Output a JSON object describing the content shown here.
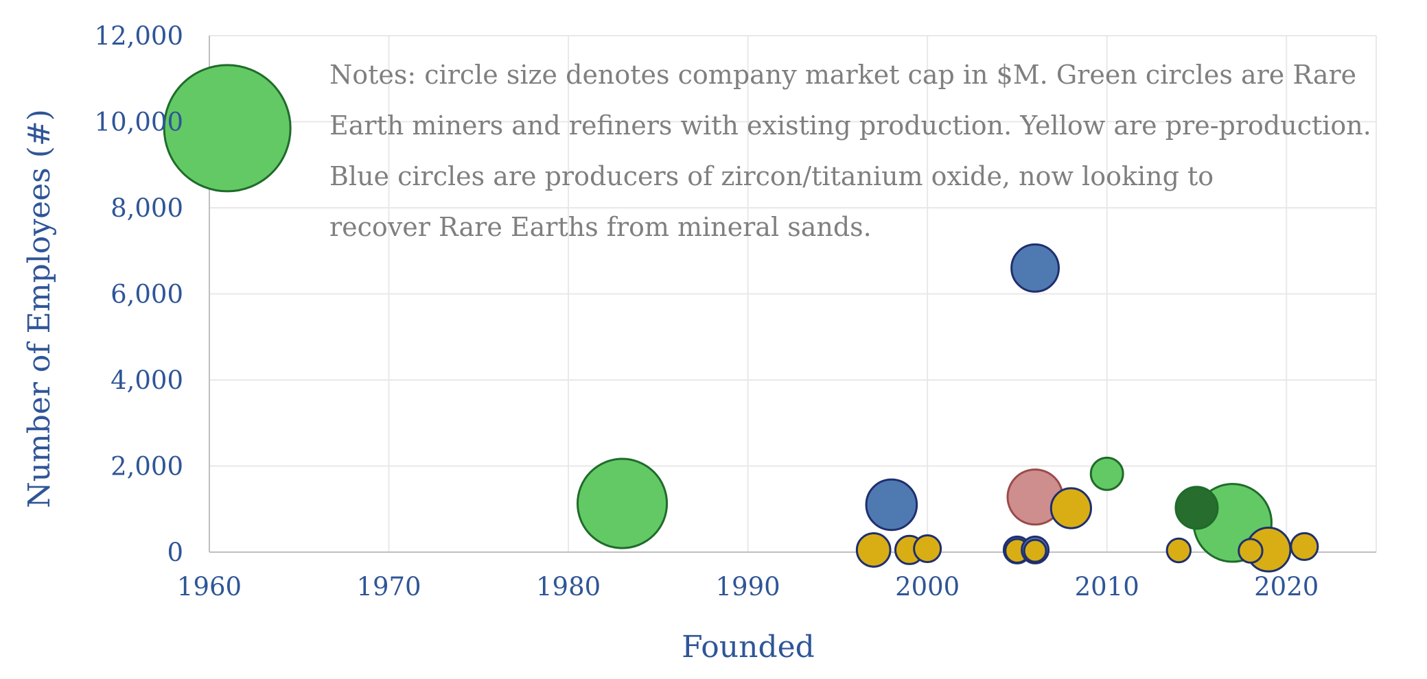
{
  "chart_data": {
    "type": "scatter",
    "bubble": true,
    "xlabel": "Founded",
    "ylabel": "Number of Employees (#)",
    "xlim": [
      1960,
      2025
    ],
    "ylim": [
      0,
      12000
    ],
    "x_ticks": [
      1960,
      1970,
      1980,
      1990,
      2000,
      2010,
      2020
    ],
    "y_ticks": [
      0,
      2000,
      4000,
      6000,
      8000,
      10000,
      12000
    ],
    "x_tick_labels": [
      "1960",
      "1970",
      "1980",
      "1990",
      "2000",
      "2010",
      "2020"
    ],
    "y_tick_labels": [
      "0",
      "2,000",
      "4,000",
      "6,000",
      "8,000",
      "10,000",
      "12,000"
    ],
    "grid": true,
    "annotations": [
      "Notes: circle size denotes company market cap in $M. Green circles are Rare",
      "Earth miners and refiners with existing production. Yellow are pre-production.",
      "Blue circles are producers of zircon/titanium oxide, now looking to",
      "recover Rare Earths from mineral sands."
    ],
    "colors": {
      "green": "#63C965",
      "dark_green": "#276D2D",
      "blue": "#4F7AB1",
      "yellow": "#D8AE14",
      "pink": "#CE8E8E",
      "axis_text": "#2F5597",
      "note_text": "#7f7f7f",
      "grid": "#e8e8e8"
    },
    "points": [
      {
        "x": 1961,
        "y": 9850,
        "size": 10,
        "category": "green"
      },
      {
        "x": 1983,
        "y": 1130,
        "size": 5,
        "category": "green"
      },
      {
        "x": 1998,
        "y": 1100,
        "size": 1.6,
        "category": "blue"
      },
      {
        "x": 1997,
        "y": 50,
        "size": 0.7,
        "category": "yellow"
      },
      {
        "x": 1999,
        "y": 50,
        "size": 0.5,
        "category": "yellow"
      },
      {
        "x": 2000,
        "y": 80,
        "size": 0.45,
        "category": "yellow"
      },
      {
        "x": 2005,
        "y": 50,
        "size": 0.45,
        "category": "blue"
      },
      {
        "x": 2005,
        "y": 30,
        "size": 0.35,
        "category": "yellow"
      },
      {
        "x": 2006,
        "y": 50,
        "size": 0.45,
        "category": "blue"
      },
      {
        "x": 2006,
        "y": 30,
        "size": 0.3,
        "category": "yellow"
      },
      {
        "x": 2006,
        "y": 6600,
        "size": 1.4,
        "category": "blue"
      },
      {
        "x": 2006,
        "y": 1280,
        "size": 1.9,
        "category": "pink"
      },
      {
        "x": 2008,
        "y": 1020,
        "size": 1.0,
        "category": "yellow"
      },
      {
        "x": 2010,
        "y": 1820,
        "size": 0.65,
        "category": "green"
      },
      {
        "x": 2014,
        "y": 40,
        "size": 0.35,
        "category": "yellow"
      },
      {
        "x": 2017,
        "y": 680,
        "size": 3.8,
        "category": "green"
      },
      {
        "x": 2015,
        "y": 1030,
        "size": 1.1,
        "category": "dark_green"
      },
      {
        "x": 2019,
        "y": 60,
        "size": 1.2,
        "category": "yellow"
      },
      {
        "x": 2018,
        "y": 30,
        "size": 0.35,
        "category": "yellow"
      },
      {
        "x": 2021,
        "y": 130,
        "size": 0.45,
        "category": "yellow"
      }
    ]
  }
}
